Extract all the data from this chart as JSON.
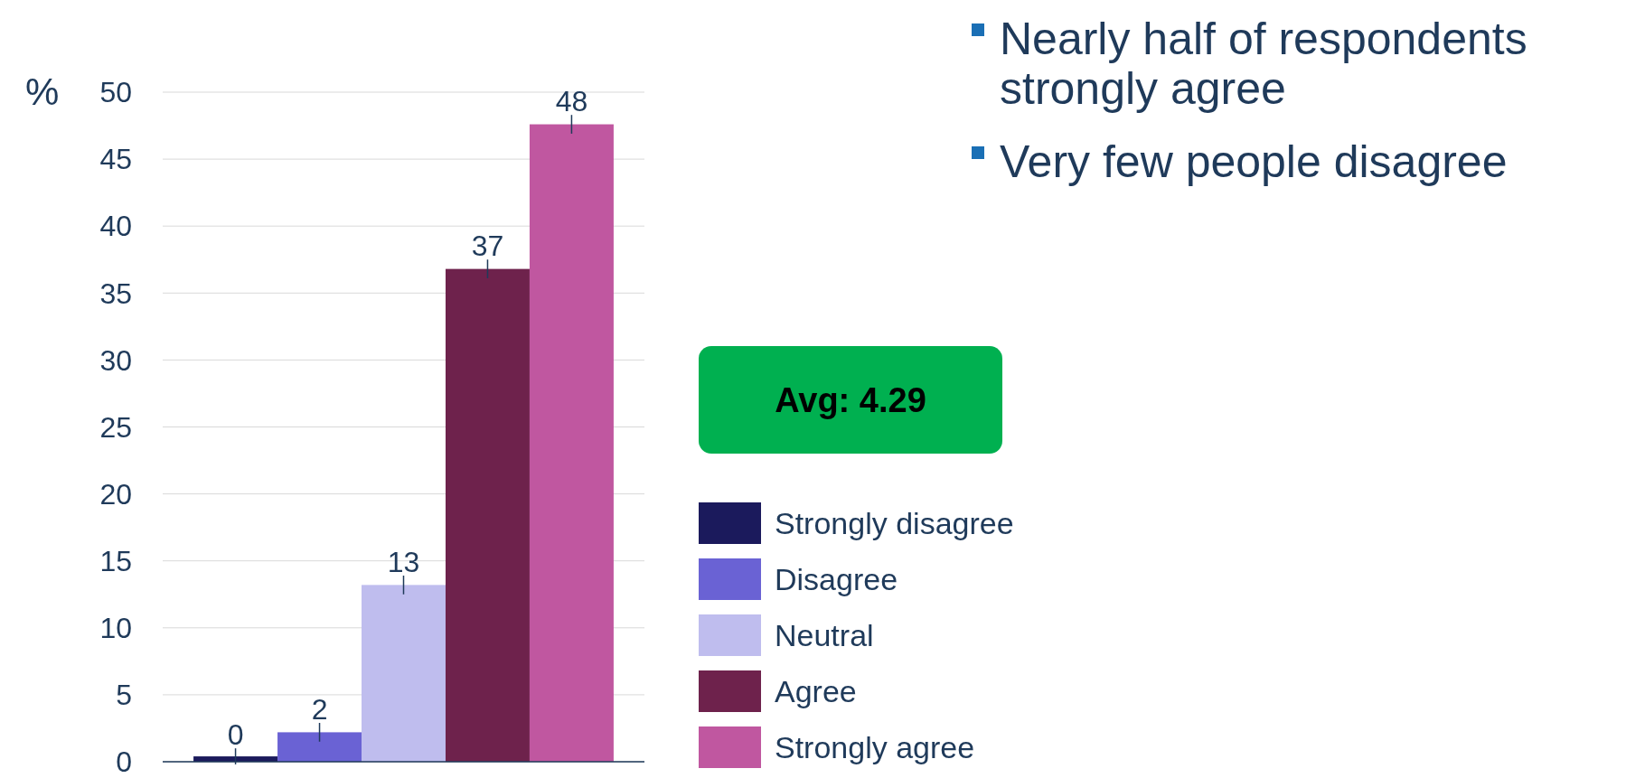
{
  "chart_data": {
    "type": "bar",
    "ylabel": "%",
    "categories": [
      null
    ],
    "series": [
      {
        "name": "Strongly disagree",
        "color": "#1b1a5c",
        "values": [
          0.4
        ],
        "errors": [
          0.6
        ],
        "value_labels": [
          "0"
        ]
      },
      {
        "name": "Disagree",
        "color": "#6a62d4",
        "values": [
          2.2
        ],
        "errors": [
          0.7
        ],
        "value_labels": [
          "2"
        ]
      },
      {
        "name": "Neutral",
        "color": "#bfbdee",
        "values": [
          13.2
        ],
        "errors": [
          0.7
        ],
        "value_labels": [
          "13"
        ]
      },
      {
        "name": "Agree",
        "color": "#6e224c",
        "values": [
          36.8
        ],
        "errors": [
          0.7
        ],
        "value_labels": [
          "37"
        ]
      },
      {
        "name": "Strongly agree",
        "color": "#c057a0",
        "values": [
          47.6
        ],
        "errors": [
          0.7
        ],
        "value_labels": [
          "48"
        ]
      }
    ],
    "ylim": [
      0,
      50
    ],
    "yticks": [
      0,
      5,
      10,
      15,
      20,
      25,
      30,
      35,
      40,
      45,
      50
    ],
    "grid": "y",
    "legend": "right",
    "annotations": [
      "Nearly half of respondents strongly agree",
      "Very few people disagree",
      "Avg: 4.29"
    ]
  }
}
